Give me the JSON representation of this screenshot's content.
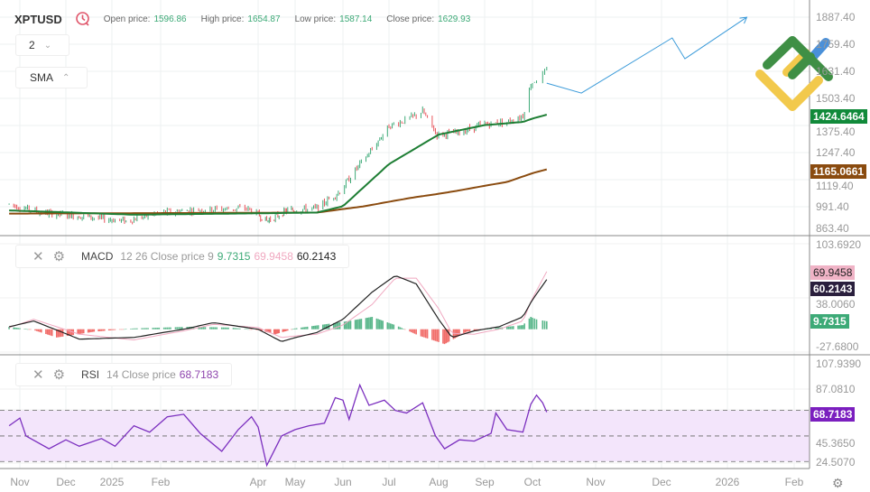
{
  "header": {
    "symbol": "XPTUSD",
    "open_label": "Open price:",
    "open": "1596.86",
    "high_label": "High price:",
    "high": "1654.87",
    "low_label": "Low price:",
    "low": "1587.14",
    "close_label": "Close price:",
    "close": "1629.93",
    "clock_icon": "clock-icon"
  },
  "controls": {
    "period_value": "2",
    "indicator_value": "SMA"
  },
  "macd_legend": {
    "name": "MACD",
    "params": "12 26 Close price 9",
    "hist": "9.7315",
    "signal": "69.9458",
    "macd": "60.2143"
  },
  "rsi_legend": {
    "name": "RSI",
    "params": "14 Close price",
    "value": "68.7183"
  },
  "price_axis": [
    "1887.40",
    "1759.40",
    "1631.40",
    "1503.40",
    "1375.40",
    "1247.40",
    "1119.40",
    "991.40",
    "863.40"
  ],
  "macd_axis": [
    "103.6920",
    "38.0060",
    "-27.6800"
  ],
  "rsi_axis": [
    "107.9390",
    "87.0810",
    "45.3650",
    "24.5070"
  ],
  "price_labels": {
    "sma_fast": "1424.6464",
    "sma_slow": "1165.0661"
  },
  "macd_labels": {
    "signal": "69.9458",
    "macd": "60.2143",
    "hist": "9.7315"
  },
  "rsi_label": "68.7183",
  "x_axis": [
    {
      "label": "Nov",
      "date": "2024-11-01"
    },
    {
      "label": "Dec",
      "date": "2024-12-01"
    },
    {
      "label": "2025",
      "date": "2025-01-01"
    },
    {
      "label": "Feb",
      "date": "2025-02-01"
    },
    {
      "label": "Apr",
      "date": "2025-04-01"
    },
    {
      "label": "May",
      "date": "2025-05-01"
    },
    {
      "label": "Jun",
      "date": "2025-06-01"
    },
    {
      "label": "Jul",
      "date": "2025-07-01"
    },
    {
      "label": "Aug",
      "date": "2025-08-01"
    },
    {
      "label": "Sep",
      "date": "2025-09-01"
    },
    {
      "label": "Oct",
      "date": "2025-10-01"
    },
    {
      "label": "Nov",
      "date": "2025-11-01"
    },
    {
      "label": "Dec",
      "date": "2025-12-01"
    },
    {
      "label": "2026",
      "date": "2026-01-01"
    },
    {
      "label": "Feb",
      "date": "2026-02-01"
    }
  ],
  "colors": {
    "up": "#3daa77",
    "down": "#e8545b",
    "sma_fast": "#1e7e34",
    "sma_slow": "#8a4b0f",
    "macd": "#222222",
    "signal": "#f0a8c0",
    "hist_up": "#3daa77",
    "hist_down": "#ef5350",
    "rsi": "#7b2fbf",
    "rsi_band": "#f3e5fb",
    "forecast": "#3a9ad9"
  },
  "chart_data": {
    "type": "candlestick",
    "ylim": [
      863.4,
      1887.4
    ],
    "price_path": [
      [
        "2024-10-25",
        1000
      ],
      [
        "2024-11-15",
        960
      ],
      [
        "2024-12-15",
        940
      ],
      [
        "2025-01-10",
        920
      ],
      [
        "2025-02-01",
        960
      ],
      [
        "2025-03-01",
        975
      ],
      [
        "2025-03-25",
        980
      ],
      [
        "2025-04-08",
        920
      ],
      [
        "2025-04-25",
        970
      ],
      [
        "2025-05-15",
        980
      ],
      [
        "2025-05-30",
        1060
      ],
      [
        "2025-06-10",
        1170
      ],
      [
        "2025-06-20",
        1260
      ],
      [
        "2025-07-01",
        1370
      ],
      [
        "2025-07-15",
        1410
      ],
      [
        "2025-07-22",
        1440
      ],
      [
        "2025-07-31",
        1330
      ],
      [
        "2025-08-15",
        1340
      ],
      [
        "2025-09-01",
        1380
      ],
      [
        "2025-09-15",
        1390
      ],
      [
        "2025-09-25",
        1420
      ],
      [
        "2025-09-30",
        1570
      ],
      [
        "2025-10-08",
        1630
      ]
    ],
    "sma_fast": [
      [
        "2024-10-25",
        970
      ],
      [
        "2025-01-15",
        950
      ],
      [
        "2025-05-15",
        960
      ],
      [
        "2025-06-01",
        990
      ],
      [
        "2025-07-01",
        1190
      ],
      [
        "2025-08-01",
        1330
      ],
      [
        "2025-09-01",
        1375
      ],
      [
        "2025-09-25",
        1390
      ],
      [
        "2025-10-08",
        1424.6464
      ]
    ],
    "sma_slow": [
      [
        "2024-10-25",
        955
      ],
      [
        "2025-05-15",
        960
      ],
      [
        "2025-06-15",
        990
      ],
      [
        "2025-07-15",
        1030
      ],
      [
        "2025-08-15",
        1065
      ],
      [
        "2025-09-15",
        1105
      ],
      [
        "2025-10-08",
        1165.0661
      ]
    ],
    "forecast": [
      [
        "2025-10-08",
        1574
      ],
      [
        "2025-10-25",
        1527
      ],
      [
        "2025-12-06",
        1789
      ],
      [
        "2025-12-12",
        1690
      ],
      [
        "2026-01-10",
        1887
      ]
    ],
    "macd": {
      "ylim": [
        -27.68,
        103.692
      ],
      "macd": [
        [
          "2024-10-25",
          3
        ],
        [
          "2024-11-10",
          10
        ],
        [
          "2024-12-10",
          -12
        ],
        [
          "2025-01-15",
          -10
        ],
        [
          "2025-02-15",
          0
        ],
        [
          "2025-03-05",
          8
        ],
        [
          "2025-04-01",
          0
        ],
        [
          "2025-04-20",
          -15
        ],
        [
          "2025-05-15",
          -4
        ],
        [
          "2025-06-01",
          12
        ],
        [
          "2025-06-20",
          45
        ],
        [
          "2025-07-05",
          65
        ],
        [
          "2025-07-18",
          55
        ],
        [
          "2025-08-01",
          12
        ],
        [
          "2025-08-10",
          -10
        ],
        [
          "2025-08-25",
          -2
        ],
        [
          "2025-09-10",
          3
        ],
        [
          "2025-09-25",
          15
        ],
        [
          "2025-10-08",
          60.2143
        ]
      ],
      "signal": [
        [
          "2024-10-25",
          2
        ],
        [
          "2024-11-10",
          12
        ],
        [
          "2024-12-10",
          -6
        ],
        [
          "2025-01-15",
          -13
        ],
        [
          "2025-02-15",
          -2
        ],
        [
          "2025-03-05",
          6
        ],
        [
          "2025-04-01",
          2
        ],
        [
          "2025-04-20",
          -10
        ],
        [
          "2025-05-15",
          -6
        ],
        [
          "2025-06-01",
          5
        ],
        [
          "2025-06-20",
          30
        ],
        [
          "2025-07-05",
          62
        ],
        [
          "2025-07-18",
          62
        ],
        [
          "2025-08-01",
          25
        ],
        [
          "2025-08-10",
          -5
        ],
        [
          "2025-08-25",
          -6
        ],
        [
          "2025-09-10",
          0
        ],
        [
          "2025-09-25",
          10
        ],
        [
          "2025-10-08",
          69.9458
        ]
      ],
      "hist": [
        [
          "2024-10-25",
          3
        ],
        [
          "2024-11-10",
          -1
        ],
        [
          "2024-11-25",
          -10
        ],
        [
          "2024-12-20",
          -3
        ],
        [
          "2025-01-15",
          1
        ],
        [
          "2025-02-20",
          3
        ],
        [
          "2025-03-15",
          2
        ],
        [
          "2025-04-01",
          -1
        ],
        [
          "2025-04-15",
          -6
        ],
        [
          "2025-05-01",
          1
        ],
        [
          "2025-06-05",
          10
        ],
        [
          "2025-06-20",
          15
        ],
        [
          "2025-07-05",
          5
        ],
        [
          "2025-07-20",
          -8
        ],
        [
          "2025-08-05",
          -18
        ],
        [
          "2025-08-20",
          -3
        ],
        [
          "2025-09-10",
          2
        ],
        [
          "2025-09-25",
          5
        ],
        [
          "2025-09-30",
          15
        ],
        [
          "2025-10-03",
          12
        ],
        [
          "2025-10-08",
          9.7315
        ]
      ]
    },
    "rsi": {
      "ylim": [
        24.507,
        107.939
      ],
      "levels": [
        70,
        50,
        30
      ],
      "values": [
        [
          "2024-10-25",
          58
        ],
        [
          "2024-11-01",
          64
        ],
        [
          "2024-11-05",
          50
        ],
        [
          "2024-11-20",
          40
        ],
        [
          "2024-12-01",
          47
        ],
        [
          "2024-12-10",
          42
        ],
        [
          "2024-12-25",
          48
        ],
        [
          "2025-01-03",
          42
        ],
        [
          "2025-01-15",
          58
        ],
        [
          "2025-01-25",
          53
        ],
        [
          "2025-02-05",
          65
        ],
        [
          "2025-02-15",
          67
        ],
        [
          "2025-02-25",
          52
        ],
        [
          "2025-03-10",
          38
        ],
        [
          "2025-03-20",
          55
        ],
        [
          "2025-03-28",
          65
        ],
        [
          "2025-04-01",
          57
        ],
        [
          "2025-04-08",
          27
        ],
        [
          "2025-04-20",
          50
        ],
        [
          "2025-05-01",
          55
        ],
        [
          "2025-05-10",
          58
        ],
        [
          "2025-05-20",
          60
        ],
        [
          "2025-05-27",
          80
        ],
        [
          "2025-06-01",
          78
        ],
        [
          "2025-06-05",
          63
        ],
        [
          "2025-06-12",
          90
        ],
        [
          "2025-06-18",
          74
        ],
        [
          "2025-06-28",
          78
        ],
        [
          "2025-07-05",
          70
        ],
        [
          "2025-07-12",
          68
        ],
        [
          "2025-07-22",
          76
        ],
        [
          "2025-07-30",
          50
        ],
        [
          "2025-08-05",
          40
        ],
        [
          "2025-08-15",
          47
        ],
        [
          "2025-08-25",
          46
        ],
        [
          "2025-09-05",
          52
        ],
        [
          "2025-09-08",
          68
        ],
        [
          "2025-09-15",
          55
        ],
        [
          "2025-09-25",
          53
        ],
        [
          "2025-09-30",
          75
        ],
        [
          "2025-10-03",
          82
        ],
        [
          "2025-10-06",
          76
        ],
        [
          "2025-10-08",
          68.7183
        ]
      ]
    }
  }
}
